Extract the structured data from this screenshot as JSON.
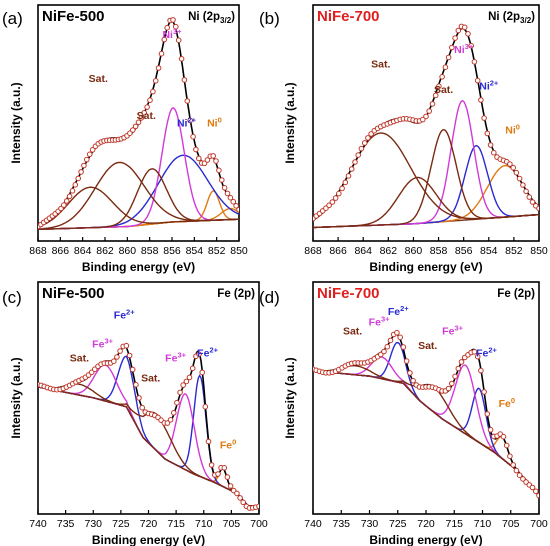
{
  "chart_data": [
    {
      "type": "line",
      "panel_label": "(a)",
      "sample": "NiFe-500",
      "region": "Ni (2p",
      "region_sub": "3/2",
      "region_close": ")",
      "xlabel": "Binding energy (eV)",
      "ylabel": "Intensity (a.u.)",
      "xlim": [
        868,
        850
      ],
      "ylim": [
        0,
        1
      ],
      "x_ticks": [
        868,
        866,
        864,
        862,
        860,
        858,
        856,
        854,
        852,
        850
      ],
      "series": [
        {
          "color": "#e07a10",
          "values": [
            [
              852.3,
              0.16,
              0.55
            ],
            [
              850.8,
              0.06,
              0.8
            ]
          ]
        },
        {
          "color": "#2a2ad0",
          "values": [
            [
              855.0,
              0.36,
              2.2
            ]
          ]
        },
        {
          "color": "#d23ad8",
          "values": [
            [
              855.9,
              0.62,
              1.0
            ]
          ]
        },
        {
          "color": "#7a2a10",
          "values": [
            [
              857.8,
              0.3,
              1.3
            ],
            [
              860.7,
              0.35,
              2.2
            ],
            [
              863.3,
              0.22,
              2.0
            ]
          ]
        }
      ],
      "background": [
        [
          868,
          0.02
        ],
        [
          860,
          0.035
        ],
        [
          856,
          0.06
        ],
        [
          852,
          0.07
        ],
        [
          850,
          0.075
        ]
      ],
      "labels": [
        {
          "text": "Sat.",
          "sup": "",
          "x": 862.6,
          "y": 0.82,
          "color": "#7a2a10"
        },
        {
          "text": "Sat.",
          "sup": "",
          "x": 858.3,
          "y": 0.62,
          "color": "#7a2a10"
        },
        {
          "text": "Ni",
          "sup": "3+",
          "x": 856.0,
          "y": 1.06,
          "color": "#d23ad8"
        },
        {
          "text": "Ni",
          "sup": "2+",
          "x": 854.7,
          "y": 0.58,
          "color": "#2a2ad0"
        },
        {
          "text": "Ni",
          "sup": "0",
          "x": 852.2,
          "y": 0.58,
          "color": "#e07a10"
        }
      ]
    },
    {
      "type": "line",
      "panel_label": "(b)",
      "sample": "NiFe-700",
      "region": "Ni (2p",
      "region_sub": "3/2",
      "region_close": ")",
      "xlabel": "Binding energy (eV)",
      "ylabel": "Intensity (a.u.)",
      "xlim": [
        868,
        850
      ],
      "ylim": [
        0,
        1
      ],
      "x_ticks": [
        868,
        866,
        864,
        862,
        860,
        858,
        856,
        854,
        852,
        850
      ],
      "series": [
        {
          "color": "#e07a10",
          "values": [
            [
              852.7,
              0.28,
              1.4
            ]
          ]
        },
        {
          "color": "#2a2ad0",
          "values": [
            [
              855.0,
              0.4,
              0.9
            ]
          ]
        },
        {
          "color": "#d23ad8",
          "values": [
            [
              856.1,
              0.65,
              0.9
            ]
          ]
        },
        {
          "color": "#7a2a10",
          "values": [
            [
              857.6,
              0.5,
              1.0
            ],
            [
              859.7,
              0.25,
              1.5
            ],
            [
              862.6,
              0.5,
              2.4
            ]
          ]
        }
      ],
      "background": [
        [
          868,
          0.03
        ],
        [
          860,
          0.05
        ],
        [
          856,
          0.07
        ],
        [
          852,
          0.09
        ],
        [
          850,
          0.1
        ]
      ],
      "labels": [
        {
          "text": "Sat.",
          "sup": "",
          "x": 862.6,
          "y": 0.9,
          "color": "#7a2a10"
        },
        {
          "text": "Sat.",
          "sup": "",
          "x": 857.6,
          "y": 0.76,
          "color": "#7a2a10"
        },
        {
          "text": "Ni",
          "sup": "3+",
          "x": 856.0,
          "y": 0.98,
          "color": "#d23ad8"
        },
        {
          "text": "Ni",
          "sup": "2+",
          "x": 854.0,
          "y": 0.78,
          "color": "#2a2ad0"
        },
        {
          "text": "Ni",
          "sup": "0",
          "x": 852.1,
          "y": 0.54,
          "color": "#e07a10"
        }
      ]
    },
    {
      "type": "line",
      "panel_label": "(c)",
      "sample": "NiFe-500",
      "region": "Fe (2p)",
      "region_sub": "",
      "region_close": "",
      "xlabel": "Binding energy (eV)",
      "ylabel": "Intensity (a.u.)",
      "xlim": [
        740,
        700
      ],
      "ylim": [
        0,
        1
      ],
      "x_ticks": [
        740,
        735,
        730,
        725,
        720,
        715,
        710,
        705,
        700
      ],
      "series": [
        {
          "color": "#e07a10",
          "values": [
            [
              706.5,
              0.1,
              0.7
            ]
          ]
        },
        {
          "color": "#2a2ad0",
          "values": [
            [
              710.7,
              0.56,
              1.1
            ],
            [
              724.0,
              0.28,
              1.5
            ]
          ]
        },
        {
          "color": "#d23ad8",
          "values": [
            [
              713.3,
              0.42,
              1.6
            ],
            [
              727.8,
              0.2,
              2.0
            ]
          ]
        },
        {
          "color": "#7a2a10",
          "values": [
            [
              718.4,
              0.2,
              2.5
            ],
            [
              732.5,
              0.06,
              2.5
            ]
          ]
        }
      ],
      "background": [
        [
          740,
          0.66
        ],
        [
          730,
          0.6
        ],
        [
          724,
          0.55
        ],
        [
          721,
          0.38
        ],
        [
          717,
          0.26
        ],
        [
          712,
          0.18
        ],
        [
          708,
          0.13
        ],
        [
          704,
          0.07
        ],
        [
          702,
          0.0
        ]
      ],
      "labels": [
        {
          "text": "Sat.",
          "sup": "",
          "x": 732.5,
          "y": 0.8,
          "color": "#7a2a10"
        },
        {
          "text": "Fe",
          "sup": "3+",
          "x": 728.3,
          "y": 0.88,
          "color": "#d23ad8"
        },
        {
          "text": "Fe",
          "sup": "2+",
          "x": 724.4,
          "y": 1.04,
          "color": "#2a2ad0"
        },
        {
          "text": "Sat.",
          "sup": "",
          "x": 719.6,
          "y": 0.69,
          "color": "#7a2a10"
        },
        {
          "text": "Fe",
          "sup": "3+",
          "x": 715.1,
          "y": 0.8,
          "color": "#d23ad8"
        },
        {
          "text": "Fe",
          "sup": "2+",
          "x": 709.3,
          "y": 0.83,
          "color": "#2a2ad0"
        },
        {
          "text": "Fe",
          "sup": "0",
          "x": 705.6,
          "y": 0.32,
          "color": "#e07a10"
        }
      ]
    },
    {
      "type": "line",
      "panel_label": "(d)",
      "sample": "NiFe-700",
      "region": "Fe (2p)",
      "region_sub": "",
      "region_close": "",
      "xlabel": "Binding energy (eV)",
      "ylabel": "Intensity (a.u.)",
      "xlim": [
        740,
        700
      ],
      "ylim": [
        0,
        1
      ],
      "x_ticks": [
        740,
        735,
        730,
        725,
        720,
        715,
        710,
        705,
        700
      ],
      "series": [
        {
          "color": "#e07a10",
          "values": [
            [
              706.5,
              0.12,
              1.0
            ]
          ]
        },
        {
          "color": "#2a2ad0",
          "values": [
            [
              710.6,
              0.3,
              1.2
            ],
            [
              725.0,
              0.22,
              1.3
            ]
          ]
        },
        {
          "color": "#d23ad8",
          "values": [
            [
              713.0,
              0.38,
              1.8
            ],
            [
              727.8,
              0.12,
              1.8
            ]
          ]
        },
        {
          "color": "#7a2a10",
          "values": [
            [
              718.5,
              0.14,
              2.5
            ],
            [
              732.5,
              0.05,
              2.5
            ]
          ]
        }
      ],
      "background": [
        [
          740,
          0.75
        ],
        [
          730,
          0.72
        ],
        [
          724,
          0.68
        ],
        [
          721,
          0.58
        ],
        [
          717,
          0.48
        ],
        [
          712,
          0.38
        ],
        [
          708,
          0.3
        ],
        [
          704,
          0.2
        ],
        [
          701,
          0.1
        ],
        [
          700,
          0.05
        ]
      ],
      "labels": [
        {
          "text": "Sat.",
          "sup": "",
          "x": 733.0,
          "y": 0.95,
          "color": "#7a2a10"
        },
        {
          "text": "Fe",
          "sup": "3+",
          "x": 728.3,
          "y": 1.0,
          "color": "#d23ad8"
        },
        {
          "text": "Fe",
          "sup": "2+",
          "x": 724.9,
          "y": 1.06,
          "color": "#2a2ad0"
        },
        {
          "text": "Sat.",
          "sup": "",
          "x": 719.7,
          "y": 0.87,
          "color": "#7a2a10"
        },
        {
          "text": "Fe",
          "sup": "3+",
          "x": 715.3,
          "y": 0.95,
          "color": "#d23ad8"
        },
        {
          "text": "Fe",
          "sup": "2+",
          "x": 709.3,
          "y": 0.83,
          "color": "#2a2ad0"
        },
        {
          "text": "Fe",
          "sup": "0",
          "x": 705.7,
          "y": 0.55,
          "color": "#e07a10"
        }
      ]
    }
  ],
  "colors": {
    "raw_fill": "#ffffff",
    "raw_stroke": "#c0392b",
    "fit": "#000000",
    "background": "#7a2a10",
    "sample_highlight": "#e02020",
    "text": "#000000"
  }
}
